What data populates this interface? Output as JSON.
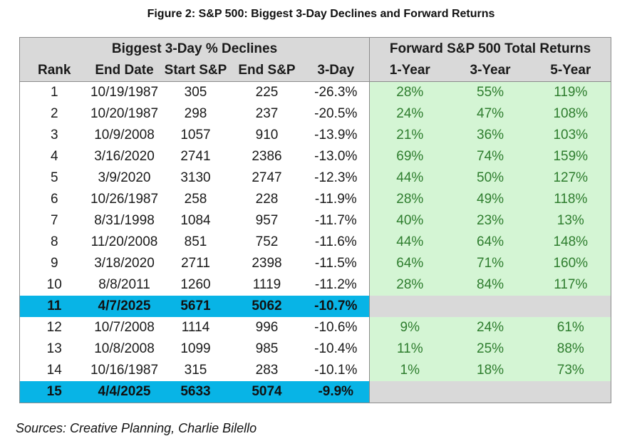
{
  "title": "Figure 2: S&P 500: Biggest 3-Day Declines and Forward Returns",
  "group_headers": {
    "left": "Biggest 3-Day % Declines",
    "right": "Forward S&P 500 Total Returns"
  },
  "columns": [
    "Rank",
    "End Date",
    "Start S&P",
    "End S&P",
    "3-Day",
    "1-Year",
    "3-Year",
    "5-Year"
  ],
  "rows": [
    {
      "rank": "1",
      "end_date": "10/19/1987",
      "start": "305",
      "end": "225",
      "three_day": "-26.3%",
      "y1": "28%",
      "y3": "55%",
      "y5": "119%",
      "highlight": false
    },
    {
      "rank": "2",
      "end_date": "10/20/1987",
      "start": "298",
      "end": "237",
      "three_day": "-20.5%",
      "y1": "24%",
      "y3": "47%",
      "y5": "108%",
      "highlight": false
    },
    {
      "rank": "3",
      "end_date": "10/9/2008",
      "start": "1057",
      "end": "910",
      "three_day": "-13.9%",
      "y1": "21%",
      "y3": "36%",
      "y5": "103%",
      "highlight": false
    },
    {
      "rank": "4",
      "end_date": "3/16/2020",
      "start": "2741",
      "end": "2386",
      "three_day": "-13.0%",
      "y1": "69%",
      "y3": "74%",
      "y5": "159%",
      "highlight": false
    },
    {
      "rank": "5",
      "end_date": "3/9/2020",
      "start": "3130",
      "end": "2747",
      "three_day": "-12.3%",
      "y1": "44%",
      "y3": "50%",
      "y5": "127%",
      "highlight": false
    },
    {
      "rank": "6",
      "end_date": "10/26/1987",
      "start": "258",
      "end": "228",
      "three_day": "-11.9%",
      "y1": "28%",
      "y3": "49%",
      "y5": "118%",
      "highlight": false
    },
    {
      "rank": "7",
      "end_date": "8/31/1998",
      "start": "1084",
      "end": "957",
      "three_day": "-11.7%",
      "y1": "40%",
      "y3": "23%",
      "y5": "13%",
      "highlight": false
    },
    {
      "rank": "8",
      "end_date": "11/20/2008",
      "start": "851",
      "end": "752",
      "three_day": "-11.6%",
      "y1": "44%",
      "y3": "64%",
      "y5": "148%",
      "highlight": false
    },
    {
      "rank": "9",
      "end_date": "3/18/2020",
      "start": "2711",
      "end": "2398",
      "three_day": "-11.5%",
      "y1": "64%",
      "y3": "71%",
      "y5": "160%",
      "highlight": false
    },
    {
      "rank": "10",
      "end_date": "8/8/2011",
      "start": "1260",
      "end": "1119",
      "three_day": "-11.2%",
      "y1": "28%",
      "y3": "84%",
      "y5": "117%",
      "highlight": false
    },
    {
      "rank": "11",
      "end_date": "4/7/2025",
      "start": "5671",
      "end": "5062",
      "three_day": "-10.7%",
      "y1": "",
      "y3": "",
      "y5": "",
      "highlight": true
    },
    {
      "rank": "12",
      "end_date": "10/7/2008",
      "start": "1114",
      "end": "996",
      "three_day": "-10.6%",
      "y1": "9%",
      "y3": "24%",
      "y5": "61%",
      "highlight": false
    },
    {
      "rank": "13",
      "end_date": "10/8/2008",
      "start": "1099",
      "end": "985",
      "three_day": "-10.4%",
      "y1": "11%",
      "y3": "25%",
      "y5": "88%",
      "highlight": false
    },
    {
      "rank": "14",
      "end_date": "10/16/1987",
      "start": "315",
      "end": "283",
      "three_day": "-10.1%",
      "y1": "1%",
      "y3": "18%",
      "y5": "73%",
      "highlight": false
    },
    {
      "rank": "15",
      "end_date": "4/4/2025",
      "start": "5633",
      "end": "5074",
      "three_day": "-9.9%",
      "y1": "",
      "y3": "",
      "y5": "",
      "highlight": true
    }
  ],
  "sources": "Sources: Creative Planning, Charlie Bilello",
  "colors": {
    "header_bg": "#d9d9d9",
    "forward_bg": "#d4f5d4",
    "forward_text": "#2e7d2e",
    "highlight_bg": "#08b4e6"
  }
}
